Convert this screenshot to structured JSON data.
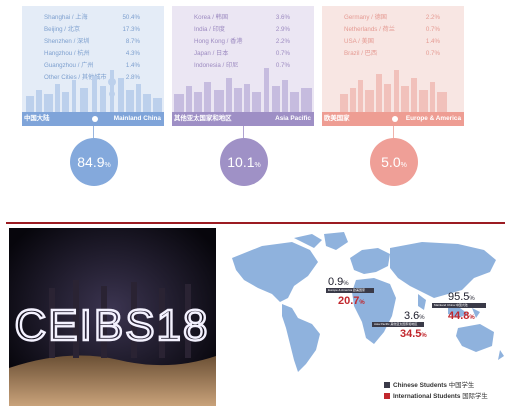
{
  "regions": [
    {
      "key": "blue",
      "rows": [
        {
          "label": "Shanghai / 上海",
          "value": "50.4%"
        },
        {
          "label": "Beijing / 北京",
          "value": "17.3%"
        },
        {
          "label": "Shenzhen / 深圳",
          "value": "8.7%"
        },
        {
          "label": "Hangzhou / 杭州",
          "value": "4.3%"
        },
        {
          "label": "Guangzhou / 广州",
          "value": "1.4%"
        },
        {
          "label": "Other Cities / 其他城市",
          "value": "2.8%"
        }
      ],
      "band_cn": "中国大陆",
      "band_en": "Mainland China",
      "total": "84.9",
      "pct_sign": "%"
    },
    {
      "key": "purple",
      "rows": [
        {
          "label": "Korea / 韩国",
          "value": "3.6%"
        },
        {
          "label": "India / 印度",
          "value": "2.9%"
        },
        {
          "label": "Hong Kong / 香港",
          "value": "2.2%"
        },
        {
          "label": "Japan / 日本",
          "value": "0.7%"
        },
        {
          "label": "Indonesia / 印尼",
          "value": "0.7%"
        }
      ],
      "band_cn": "其他亚太国家和地区",
      "band_en": "Asia Pacific",
      "total": "10.1",
      "pct_sign": "%"
    },
    {
      "key": "red",
      "rows": [
        {
          "label": "Germany / 德国",
          "value": "2.2%"
        },
        {
          "label": "Netherlands / 荷兰",
          "value": "0.7%"
        },
        {
          "label": "USA / 美国",
          "value": "1.4%"
        },
        {
          "label": "Brazil / 巴西",
          "value": "0.7%"
        }
      ],
      "band_cn": "欧美国家",
      "band_en": "Europe & America",
      "total": "5.0",
      "pct_sign": "%"
    }
  ],
  "photo": {
    "light_text": "CEIBS18"
  },
  "map": {
    "stats": [
      {
        "cn_value": "0.9",
        "int_value": "20.7",
        "tag": "Europe & America 欧美国家"
      },
      {
        "cn_value": "3.6",
        "int_value": "34.5",
        "tag": "Asia Pacific 其他亚太国家和地区"
      },
      {
        "cn_value": "95.5",
        "int_value": "44.8",
        "tag": "Mainland China 中国大陆"
      }
    ],
    "pct_sign": "%"
  },
  "legend": {
    "chinese_en": "Chinese Students",
    "chinese_cn": "中国学生",
    "international_en": "International Students",
    "international_cn": "国际学生"
  },
  "colors": {
    "blue": "#84a9dc",
    "purple": "#9f91c6",
    "red": "#ef9f97",
    "divider": "#9b1b22",
    "map_land": "#8fb2dd",
    "chinese_swatch": "#3a3a48",
    "international_swatch": "#c1272d"
  }
}
